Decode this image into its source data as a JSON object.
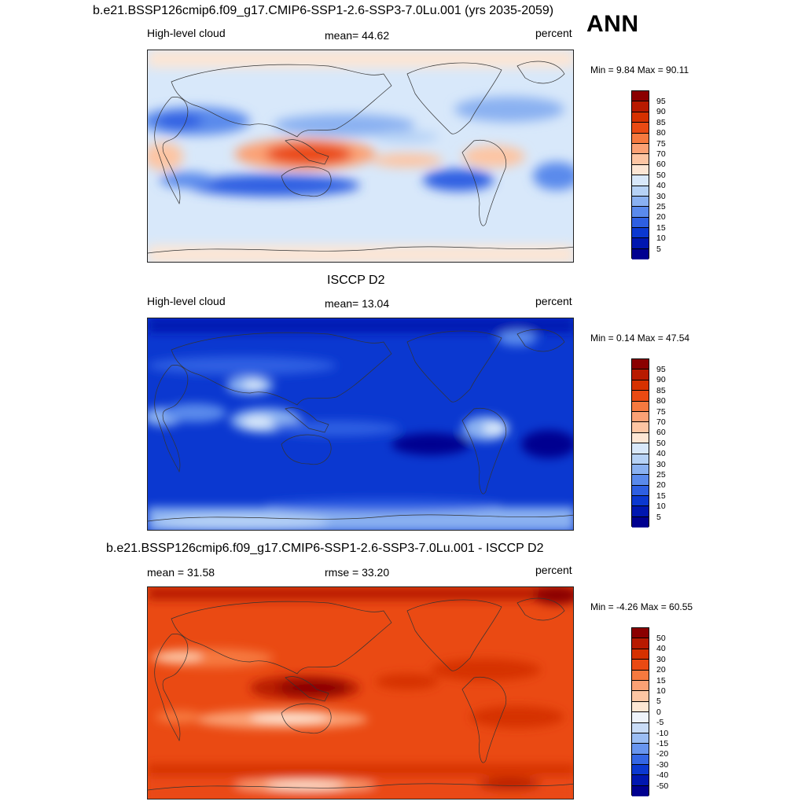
{
  "header": {
    "title": "b.e21.BSSP126cmip6.f09_g17.CMIP6-SSP1-2.6-SSP3-7.0Lu.001 (yrs 2035-2059)",
    "season": "ANN"
  },
  "panels": [
    {
      "id": "model",
      "variable": "High-level cloud",
      "mean_text": "mean=  44.62",
      "units": "percent",
      "minmax": "Min =   9.84 Max =  90.11",
      "colorbar_labels": [
        "95",
        "90",
        "85",
        "80",
        "75",
        "70",
        "60",
        "50",
        "40",
        "30",
        "25",
        "20",
        "15",
        "10",
        "5"
      ],
      "colors": [
        "#8b0000",
        "#b81a00",
        "#d63100",
        "#ea4a13",
        "#f6793f",
        "#fba175",
        "#fdc5a3",
        "#fde6d4",
        "#d8e8fa",
        "#b6d2f6",
        "#8ab1f1",
        "#5a8aec",
        "#2e5fe2",
        "#0b38d0",
        "#0017b0",
        "#000090"
      ]
    },
    {
      "id": "obs",
      "title": "ISCCP D2",
      "variable": "High-level cloud",
      "mean_text": "mean=  13.04",
      "units": "percent",
      "minmax": "Min =   0.14 Max =  47.54",
      "colorbar_labels": [
        "95",
        "90",
        "85",
        "80",
        "75",
        "70",
        "60",
        "50",
        "40",
        "30",
        "25",
        "20",
        "15",
        "10",
        "5"
      ],
      "colors": [
        "#8b0000",
        "#b81a00",
        "#d63100",
        "#ea4a13",
        "#f6793f",
        "#fba175",
        "#fdc5a3",
        "#fde6d4",
        "#d8e8fa",
        "#b6d2f6",
        "#8ab1f1",
        "#5a8aec",
        "#2e5fe2",
        "#0b38d0",
        "#0017b0",
        "#000090"
      ]
    },
    {
      "id": "diff",
      "title": "b.e21.BSSP126cmip6.f09_g17.CMIP6-SSP1-2.6-SSP3-7.0Lu.001 - ISCCP D2",
      "mean_text": "mean =  31.58",
      "rmse_text": "rmse =  33.20",
      "units": "percent",
      "minmax": "Min =  -4.26 Max =  60.55",
      "colorbar_labels": [
        "50",
        "40",
        "30",
        "20",
        "15",
        "10",
        "5",
        "0",
        "-5",
        "-10",
        "-15",
        "-20",
        "-30",
        "-40",
        "-50"
      ],
      "colors": [
        "#8b0000",
        "#b81a00",
        "#d63100",
        "#ea4a13",
        "#f6793f",
        "#fba175",
        "#fdc5a3",
        "#fde6d4",
        "#eef3fb",
        "#c9dcf7",
        "#9bbdf3",
        "#6895ee",
        "#3466e4",
        "#0b38d0",
        "#0017b0",
        "#000090"
      ]
    }
  ]
}
